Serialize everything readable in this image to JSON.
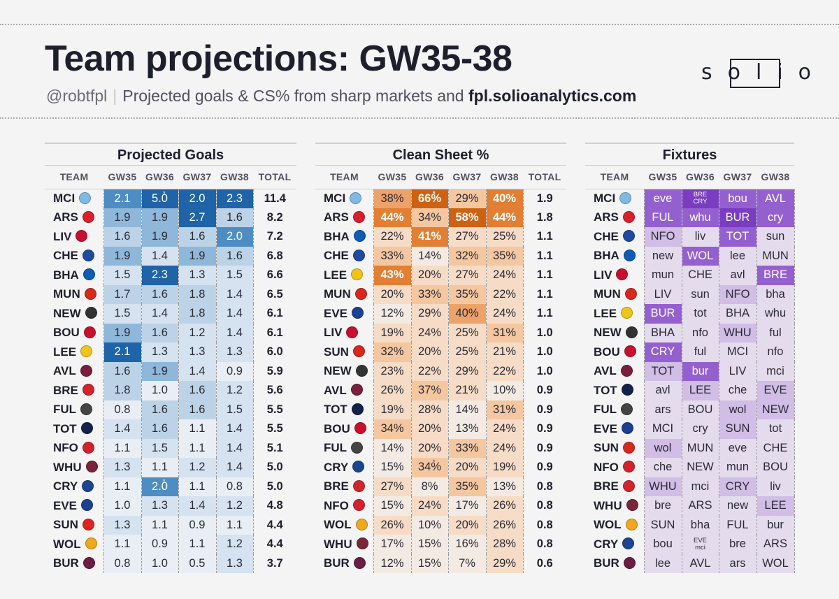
{
  "header": {
    "title": "Team projections: GW35-38",
    "handle": "@robtfpl",
    "subtitle": "Projected goals & CS% from sharp markets and",
    "site": "fpl.solioanalytics.com",
    "logo_text": "solio"
  },
  "colors": {
    "goals_scale": [
      "#e9eef5",
      "#d5e2ef",
      "#bcd3e7",
      "#8fb7d9",
      "#4d8dc4",
      "#1f63a8"
    ],
    "cs_scale": [
      "#f3ebe3",
      "#f6dcc6",
      "#f4c7a0",
      "#eda26a",
      "#e27f33",
      "#cf6212"
    ],
    "fixture_scale": [
      "#e4dcec",
      "#d1bde5",
      "#b491dd",
      "#9460d0",
      "#7a3cc1"
    ]
  },
  "crests": {
    "MCI": "#7fb9e6",
    "ARS": "#d8202a",
    "LIV": "#c8102e",
    "CHE": "#1f4aa0",
    "BHA": "#0d5bb5",
    "MUN": "#d9271c",
    "NEW": "#333333",
    "BOU": "#c8102e",
    "LEE": "#f0c419",
    "AVL": "#7a1f3d",
    "BRE": "#d3242a",
    "FUL": "#444444",
    "TOT": "#14214a",
    "NFO": "#d2222d",
    "WHU": "#7a263a",
    "CRY": "#1b458f",
    "EVE": "#1b3f94",
    "SUN": "#d9271c",
    "WOL": "#f0a81c",
    "BUR": "#6c1d45"
  },
  "projected_goals": {
    "title": "Projected Goals",
    "columns": [
      "TEAM",
      "GW35",
      "GW36",
      "GW37",
      "GW38",
      "TOTAL"
    ],
    "rows": [
      {
        "team": "MCI",
        "vals": [
          "2.1",
          "5.0",
          "2.0",
          "2.3"
        ],
        "lv": [
          4,
          5,
          5,
          5
        ],
        "total": "11.4",
        "ast": [
          false,
          true,
          false,
          false
        ]
      },
      {
        "team": "ARS",
        "vals": [
          "1.9",
          "1.9",
          "2.7",
          "1.6"
        ],
        "lv": [
          3,
          3,
          5,
          2
        ],
        "total": "8.2"
      },
      {
        "team": "LIV",
        "vals": [
          "1.6",
          "1.9",
          "1.6",
          "2.0"
        ],
        "lv": [
          2,
          3,
          2,
          4
        ],
        "total": "7.2"
      },
      {
        "team": "CHE",
        "vals": [
          "1.9",
          "1.4",
          "1.9",
          "1.6"
        ],
        "lv": [
          3,
          1,
          3,
          2
        ],
        "total": "6.8"
      },
      {
        "team": "BHA",
        "vals": [
          "1.5",
          "2.3",
          "1.3",
          "1.5"
        ],
        "lv": [
          1,
          5,
          1,
          1
        ],
        "total": "6.6"
      },
      {
        "team": "MUN",
        "vals": [
          "1.7",
          "1.6",
          "1.8",
          "1.4"
        ],
        "lv": [
          2,
          2,
          2,
          1
        ],
        "total": "6.5"
      },
      {
        "team": "NEW",
        "vals": [
          "1.5",
          "1.4",
          "1.8",
          "1.4"
        ],
        "lv": [
          1,
          1,
          2,
          1
        ],
        "total": "6.1"
      },
      {
        "team": "BOU",
        "vals": [
          "1.9",
          "1.6",
          "1.2",
          "1.4"
        ],
        "lv": [
          3,
          2,
          1,
          1
        ],
        "total": "6.1"
      },
      {
        "team": "LEE",
        "vals": [
          "2.1",
          "1.3",
          "1.3",
          "1.3"
        ],
        "lv": [
          5,
          1,
          1,
          1
        ],
        "total": "6.0"
      },
      {
        "team": "AVL",
        "vals": [
          "1.6",
          "1.9",
          "1.4",
          "0.9"
        ],
        "lv": [
          2,
          3,
          1,
          0
        ],
        "total": "5.9"
      },
      {
        "team": "BRE",
        "vals": [
          "1.8",
          "1.0",
          "1.6",
          "1.2"
        ],
        "lv": [
          2,
          0,
          2,
          1
        ],
        "total": "5.6"
      },
      {
        "team": "FUL",
        "vals": [
          "0.8",
          "1.6",
          "1.6",
          "1.5"
        ],
        "lv": [
          0,
          2,
          2,
          1
        ],
        "total": "5.5"
      },
      {
        "team": "TOT",
        "vals": [
          "1.4",
          "1.6",
          "1.1",
          "1.4"
        ],
        "lv": [
          1,
          2,
          0,
          1
        ],
        "total": "5.5"
      },
      {
        "team": "NFO",
        "vals": [
          "1.1",
          "1.5",
          "1.1",
          "1.4"
        ],
        "lv": [
          0,
          1,
          0,
          1
        ],
        "total": "5.1"
      },
      {
        "team": "WHU",
        "vals": [
          "1.3",
          "1.1",
          "1.2",
          "1.4"
        ],
        "lv": [
          1,
          0,
          1,
          1
        ],
        "total": "5.0"
      },
      {
        "team": "CRY",
        "vals": [
          "1.1",
          "2.0",
          "1.1",
          "0.8"
        ],
        "lv": [
          0,
          4,
          0,
          0
        ],
        "total": "5.0",
        "ast": [
          false,
          true,
          false,
          false
        ]
      },
      {
        "team": "EVE",
        "vals": [
          "1.0",
          "1.3",
          "1.4",
          "1.2"
        ],
        "lv": [
          0,
          1,
          1,
          1
        ],
        "total": "4.8"
      },
      {
        "team": "SUN",
        "vals": [
          "1.3",
          "1.1",
          "0.9",
          "1.1"
        ],
        "lv": [
          1,
          0,
          0,
          0
        ],
        "total": "4.4"
      },
      {
        "team": "WOL",
        "vals": [
          "1.1",
          "0.9",
          "1.1",
          "1.2"
        ],
        "lv": [
          0,
          0,
          0,
          1
        ],
        "total": "4.4"
      },
      {
        "team": "BUR",
        "vals": [
          "0.8",
          "1.0",
          "0.5",
          "1.3"
        ],
        "lv": [
          0,
          0,
          0,
          1
        ],
        "total": "3.7"
      }
    ]
  },
  "clean_sheets": {
    "title": "Clean Sheet %",
    "columns": [
      "TEAM",
      "GW35",
      "GW36",
      "GW37",
      "GW38",
      "TOTAL"
    ],
    "rows": [
      {
        "team": "MCI",
        "vals": [
          "38%",
          "66%",
          "29%",
          "40%"
        ],
        "lv": [
          3,
          5,
          2,
          4
        ],
        "total": "1.9",
        "ast": [
          false,
          true,
          false,
          false
        ]
      },
      {
        "team": "ARS",
        "vals": [
          "44%",
          "34%",
          "58%",
          "44%"
        ],
        "lv": [
          4,
          2,
          5,
          4
        ],
        "total": "1.8"
      },
      {
        "team": "BHA",
        "vals": [
          "22%",
          "41%",
          "27%",
          "25%"
        ],
        "lv": [
          1,
          4,
          1,
          1
        ],
        "total": "1.1"
      },
      {
        "team": "CHE",
        "vals": [
          "33%",
          "14%",
          "32%",
          "35%"
        ],
        "lv": [
          2,
          0,
          2,
          2
        ],
        "total": "1.1"
      },
      {
        "team": "LEE",
        "vals": [
          "43%",
          "20%",
          "27%",
          "24%"
        ],
        "lv": [
          4,
          1,
          1,
          1
        ],
        "total": "1.1"
      },
      {
        "team": "MUN",
        "vals": [
          "20%",
          "33%",
          "35%",
          "22%"
        ],
        "lv": [
          1,
          2,
          2,
          1
        ],
        "total": "1.1"
      },
      {
        "team": "EVE",
        "vals": [
          "12%",
          "29%",
          "40%",
          "24%"
        ],
        "lv": [
          0,
          1,
          3,
          1
        ],
        "total": "1.1"
      },
      {
        "team": "LIV",
        "vals": [
          "19%",
          "24%",
          "25%",
          "31%"
        ],
        "lv": [
          1,
          1,
          1,
          2
        ],
        "total": "1.0"
      },
      {
        "team": "SUN",
        "vals": [
          "32%",
          "20%",
          "25%",
          "21%"
        ],
        "lv": [
          2,
          1,
          1,
          1
        ],
        "total": "1.0"
      },
      {
        "team": "NEW",
        "vals": [
          "23%",
          "22%",
          "29%",
          "22%"
        ],
        "lv": [
          1,
          1,
          1,
          1
        ],
        "total": "1.0"
      },
      {
        "team": "AVL",
        "vals": [
          "26%",
          "37%",
          "21%",
          "10%"
        ],
        "lv": [
          1,
          2,
          1,
          0
        ],
        "total": "0.9"
      },
      {
        "team": "TOT",
        "vals": [
          "19%",
          "28%",
          "14%",
          "31%"
        ],
        "lv": [
          1,
          1,
          0,
          2
        ],
        "total": "0.9"
      },
      {
        "team": "BOU",
        "vals": [
          "34%",
          "20%",
          "13%",
          "24%"
        ],
        "lv": [
          2,
          1,
          0,
          1
        ],
        "total": "0.9"
      },
      {
        "team": "FUL",
        "vals": [
          "14%",
          "20%",
          "33%",
          "24%"
        ],
        "lv": [
          0,
          1,
          2,
          1
        ],
        "total": "0.9"
      },
      {
        "team": "CRY",
        "vals": [
          "15%",
          "34%",
          "20%",
          "19%"
        ],
        "lv": [
          0,
          2,
          1,
          1
        ],
        "total": "0.9",
        "ast": [
          false,
          true,
          false,
          false
        ]
      },
      {
        "team": "BRE",
        "vals": [
          "27%",
          "8%",
          "35%",
          "13%"
        ],
        "lv": [
          1,
          0,
          2,
          0
        ],
        "total": "0.8"
      },
      {
        "team": "NFO",
        "vals": [
          "15%",
          "24%",
          "17%",
          "26%"
        ],
        "lv": [
          0,
          1,
          0,
          1
        ],
        "total": "0.8"
      },
      {
        "team": "WOL",
        "vals": [
          "26%",
          "10%",
          "20%",
          "26%"
        ],
        "lv": [
          1,
          0,
          1,
          1
        ],
        "total": "0.8"
      },
      {
        "team": "WHU",
        "vals": [
          "17%",
          "15%",
          "16%",
          "28%"
        ],
        "lv": [
          0,
          0,
          0,
          1
        ],
        "total": "0.8"
      },
      {
        "team": "BUR",
        "vals": [
          "12%",
          "15%",
          "7%",
          "29%"
        ],
        "lv": [
          0,
          0,
          0,
          1
        ],
        "total": "0.6"
      }
    ]
  },
  "fixtures": {
    "title": "Fixtures",
    "columns": [
      "TEAM",
      "GW35",
      "GW36",
      "GW37",
      "GW38"
    ],
    "rows": [
      {
        "team": "MCI",
        "vals": [
          "eve",
          "BRE|CRY",
          "bou",
          "AVL"
        ],
        "lv": [
          3,
          4,
          3,
          3
        ]
      },
      {
        "team": "ARS",
        "vals": [
          "FUL",
          "whu",
          "BUR",
          "cry"
        ],
        "lv": [
          3,
          3,
          4,
          3
        ]
      },
      {
        "team": "CHE",
        "vals": [
          "NFO",
          "liv",
          "TOT",
          "sun"
        ],
        "lv": [
          1,
          0,
          3,
          0
        ]
      },
      {
        "team": "BHA",
        "vals": [
          "new",
          "WOL",
          "lee",
          "MUN"
        ],
        "lv": [
          0,
          3,
          0,
          0
        ]
      },
      {
        "team": "LIV",
        "vals": [
          "mun",
          "CHE",
          "avl",
          "BRE"
        ],
        "lv": [
          0,
          0,
          0,
          3
        ]
      },
      {
        "team": "MUN",
        "vals": [
          "LIV",
          "sun",
          "NFO",
          "bha"
        ],
        "lv": [
          0,
          0,
          1,
          0
        ]
      },
      {
        "team": "LEE",
        "vals": [
          "BUR",
          "tot",
          "BHA",
          "whu"
        ],
        "lv": [
          3,
          0,
          0,
          0
        ]
      },
      {
        "team": "NEW",
        "vals": [
          "BHA",
          "nfo",
          "WHU",
          "ful"
        ],
        "lv": [
          0,
          0,
          1,
          0
        ]
      },
      {
        "team": "BOU",
        "vals": [
          "CRY",
          "ful",
          "MCI",
          "nfo"
        ],
        "lv": [
          3,
          0,
          0,
          0
        ]
      },
      {
        "team": "AVL",
        "vals": [
          "TOT",
          "bur",
          "LIV",
          "mci"
        ],
        "lv": [
          1,
          3,
          0,
          0
        ]
      },
      {
        "team": "TOT",
        "vals": [
          "avl",
          "LEE",
          "che",
          "EVE"
        ],
        "lv": [
          0,
          1,
          0,
          1
        ]
      },
      {
        "team": "FUL",
        "vals": [
          "ars",
          "BOU",
          "wol",
          "NEW"
        ],
        "lv": [
          0,
          0,
          1,
          1
        ]
      },
      {
        "team": "EVE",
        "vals": [
          "MCI",
          "cry",
          "SUN",
          "tot"
        ],
        "lv": [
          0,
          0,
          1,
          0
        ]
      },
      {
        "team": "SUN",
        "vals": [
          "wol",
          "MUN",
          "eve",
          "CHE"
        ],
        "lv": [
          1,
          0,
          0,
          0
        ]
      },
      {
        "team": "NFO",
        "vals": [
          "che",
          "NEW",
          "mun",
          "BOU"
        ],
        "lv": [
          0,
          0,
          0,
          0
        ]
      },
      {
        "team": "BRE",
        "vals": [
          "WHU",
          "mci",
          "CRY",
          "liv"
        ],
        "lv": [
          1,
          0,
          1,
          0
        ]
      },
      {
        "team": "WHU",
        "vals": [
          "bre",
          "ARS",
          "new",
          "LEE"
        ],
        "lv": [
          0,
          0,
          0,
          1
        ]
      },
      {
        "team": "WOL",
        "vals": [
          "SUN",
          "bha",
          "FUL",
          "bur"
        ],
        "lv": [
          0,
          0,
          0,
          0
        ]
      },
      {
        "team": "CRY",
        "vals": [
          "bou",
          "EVE|mci",
          "bre",
          "ARS"
        ],
        "lv": [
          0,
          0,
          0,
          0
        ]
      },
      {
        "team": "BUR",
        "vals": [
          "lee",
          "AVL",
          "ars",
          "WOL"
        ],
        "lv": [
          0,
          0,
          0,
          0
        ]
      }
    ]
  }
}
